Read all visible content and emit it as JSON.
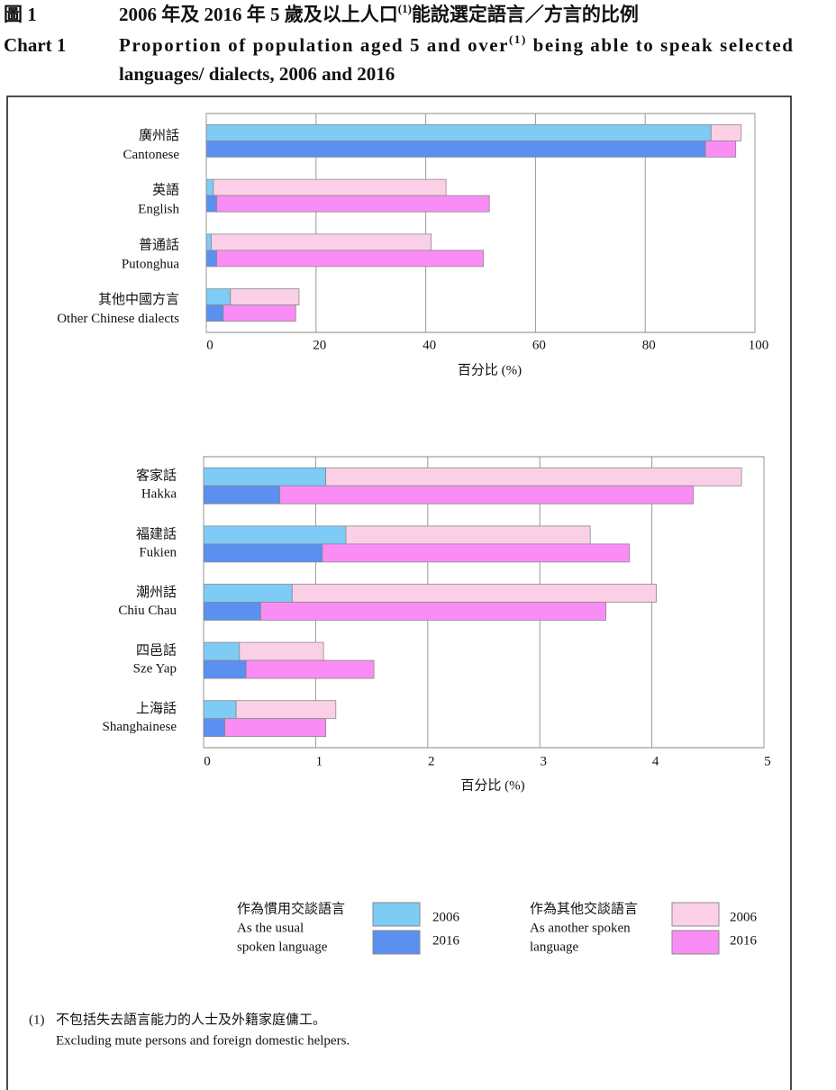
{
  "header": {
    "label_zh": "圖 1",
    "title_zh": [
      "2006 年及 2016 年 5 歲及以上人口",
      "(1)",
      "能說選定語言／方言的比例"
    ],
    "label_en": "Chart 1",
    "title_en": [
      "Proportion of population aged 5 and over",
      "(1)",
      " being able to speak selected",
      "languages/ dialects, 2006 and 2016"
    ]
  },
  "chart_data": [
    {
      "type": "bar",
      "orientation": "horizontal",
      "categories": [
        [
          "廣州話",
          "Cantonese"
        ],
        [
          "英語",
          "English"
        ],
        [
          "普通話",
          "Putonghua"
        ],
        [
          "其他中國方言",
          "Other Chinese dialects"
        ]
      ],
      "xlabel": "百分比 (%)",
      "xlim": [
        0,
        100
      ],
      "xticks": [
        0,
        20,
        40,
        60,
        80,
        100
      ],
      "grid": true,
      "series": [
        {
          "segments": [
            {
              "color": "#7ecbf5",
              "values": [
                92.0,
                1.3,
                0.9,
                4.4
              ]
            },
            {
              "color": "#fbd0e6",
              "values": [
                5.5,
                42.4,
                40.1,
                12.5
              ]
            }
          ]
        },
        {
          "segments": [
            {
              "color": "#5b8ff0",
              "values": [
                91.0,
                1.9,
                1.9,
                3.1
              ]
            },
            {
              "color": "#f98df5",
              "values": [
                5.5,
                49.7,
                48.6,
                13.2
              ]
            }
          ]
        }
      ]
    },
    {
      "type": "bar",
      "orientation": "horizontal",
      "categories": [
        [
          "客家話",
          "Hakka"
        ],
        [
          "福建話",
          "Fukien"
        ],
        [
          "潮州話",
          "Chiu Chau"
        ],
        [
          "四邑話",
          "Sze Yap"
        ],
        [
          "上海話",
          "Shanghainese"
        ]
      ],
      "xlabel": "百分比 (%)",
      "xlim": [
        0,
        5
      ],
      "xticks": [
        0,
        1,
        2,
        3,
        4,
        5
      ],
      "grid": true,
      "series": [
        {
          "name": "2006",
          "segments": [
            {
              "color": "#7ecbf5",
              "values": [
                1.09,
                1.27,
                0.79,
                0.32,
                0.29
              ]
            },
            {
              "color": "#fbd0e6",
              "values": [
                3.71,
                2.18,
                3.25,
                0.75,
                0.89
              ]
            }
          ]
        },
        {
          "name": "2016",
          "segments": [
            {
              "color": "#5b8ff0",
              "values": [
                0.68,
                1.06,
                0.51,
                0.38,
                0.19
              ]
            },
            {
              "color": "#f98df5",
              "values": [
                3.69,
                2.74,
                3.08,
                1.14,
                0.9
              ]
            }
          ]
        }
      ]
    }
  ],
  "legend": {
    "groups": [
      {
        "label": [
          "作為慣用交談語言",
          "As the usual",
          "spoken language"
        ]
      },
      {
        "label": [
          "作為其他交談語言",
          "As another spoken",
          "language"
        ]
      }
    ]
  },
  "footnote": {
    "marker": "(1)",
    "lines": [
      "不包括失去語言能力的人士及外籍家庭傭工。",
      "Excluding mute persons and foreign domestic helpers."
    ]
  }
}
